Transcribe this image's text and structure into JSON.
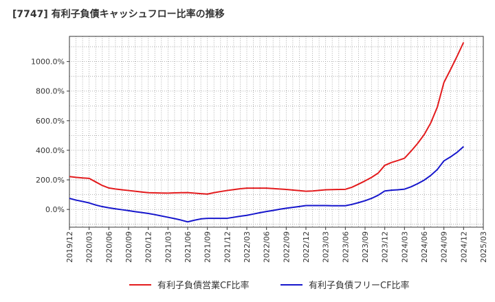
{
  "title": "[7747]  有利子負債キャッシュフロー比率の推移",
  "colors": {
    "series1": "#e31a1c",
    "series2": "#1515cc",
    "grid": "#999999",
    "axis": "#333333"
  },
  "chart_data": {
    "type": "line",
    "title": "[7747]  有利子負債キャッシュフロー比率の推移",
    "xlabel": "",
    "ylabel": "",
    "xlim": [
      "2019/12",
      "2025/03"
    ],
    "ylim": [
      -120,
      1170
    ],
    "grid": true,
    "legend_position": "bottom",
    "y_ticks": [
      0,
      200,
      400,
      600,
      800,
      1000
    ],
    "y_tick_labels": [
      "0.0%",
      "200.0%",
      "400.0%",
      "600.0%",
      "800.0%",
      "1000.0%"
    ],
    "x_tick_labels": [
      "2019/12",
      "2020/03",
      "2020/06",
      "2020/09",
      "2020/12",
      "2021/03",
      "2021/06",
      "2021/09",
      "2021/12",
      "2022/03",
      "2022/06",
      "2022/09",
      "2022/12",
      "2023/03",
      "2023/06",
      "2023/09",
      "2023/12",
      "2024/03",
      "2024/06",
      "2024/09",
      "2024/12",
      "2025/03"
    ],
    "x": [
      "2019/12",
      "2020/01",
      "2020/02",
      "2020/03",
      "2020/04",
      "2020/05",
      "2020/06",
      "2020/07",
      "2020/08",
      "2020/09",
      "2020/10",
      "2020/11",
      "2020/12",
      "2021/01",
      "2021/02",
      "2021/03",
      "2021/04",
      "2021/05",
      "2021/06",
      "2021/07",
      "2021/08",
      "2021/09",
      "2021/10",
      "2021/11",
      "2021/12",
      "2022/01",
      "2022/02",
      "2022/03",
      "2022/04",
      "2022/05",
      "2022/06",
      "2022/07",
      "2022/08",
      "2022/09",
      "2022/10",
      "2022/11",
      "2022/12",
      "2023/01",
      "2023/02",
      "2023/03",
      "2023/04",
      "2023/05",
      "2023/06",
      "2023/07",
      "2023/08",
      "2023/09",
      "2023/10",
      "2023/11",
      "2023/12",
      "2024/01",
      "2024/02",
      "2024/03",
      "2024/04",
      "2024/05",
      "2024/06",
      "2024/07",
      "2024/08",
      "2024/09",
      "2024/10",
      "2024/11",
      "2024/12"
    ],
    "series": [
      {
        "name": "有利子負債営業CF比率",
        "color": "#e31a1c",
        "values": [
          222,
          217,
          213,
          210,
          186,
          162,
          145,
          138,
          133,
          128,
          123,
          118,
          113,
          112,
          111,
          110,
          112,
          113,
          114,
          110,
          107,
          104,
          113,
          121,
          128,
          134,
          140,
          144,
          144,
          144,
          144,
          141,
          138,
          135,
          131,
          127,
          123,
          125,
          129,
          133,
          134,
          135,
          136,
          150,
          171,
          193,
          217,
          246,
          298,
          317,
          331,
          346,
          394,
          446,
          506,
          585,
          692,
          858,
          945,
          1035,
          1130
        ]
      },
      {
        "name": "有利子負債フリーCF比率",
        "color": "#1515cc",
        "values": [
          75,
          63,
          54,
          44,
          30,
          19,
          11,
          4,
          -2,
          -8,
          -15,
          -21,
          -27,
          -35,
          -44,
          -53,
          -62,
          -72,
          -84,
          -73,
          -64,
          -60,
          -60,
          -60,
          -60,
          -53,
          -46,
          -40,
          -31,
          -22,
          -14,
          -7,
          1,
          8,
          14,
          20,
          26,
          26,
          26,
          26,
          25,
          25,
          25,
          34,
          46,
          59,
          75,
          96,
          125,
          130,
          133,
          137,
          153,
          174,
          198,
          230,
          270,
          328,
          355,
          386,
          425
        ]
      }
    ]
  },
  "legend": [
    {
      "label": "有利子負債営業CF比率",
      "color": "#e31a1c"
    },
    {
      "label": "有利子負債フリーCF比率",
      "color": "#1515cc"
    }
  ]
}
